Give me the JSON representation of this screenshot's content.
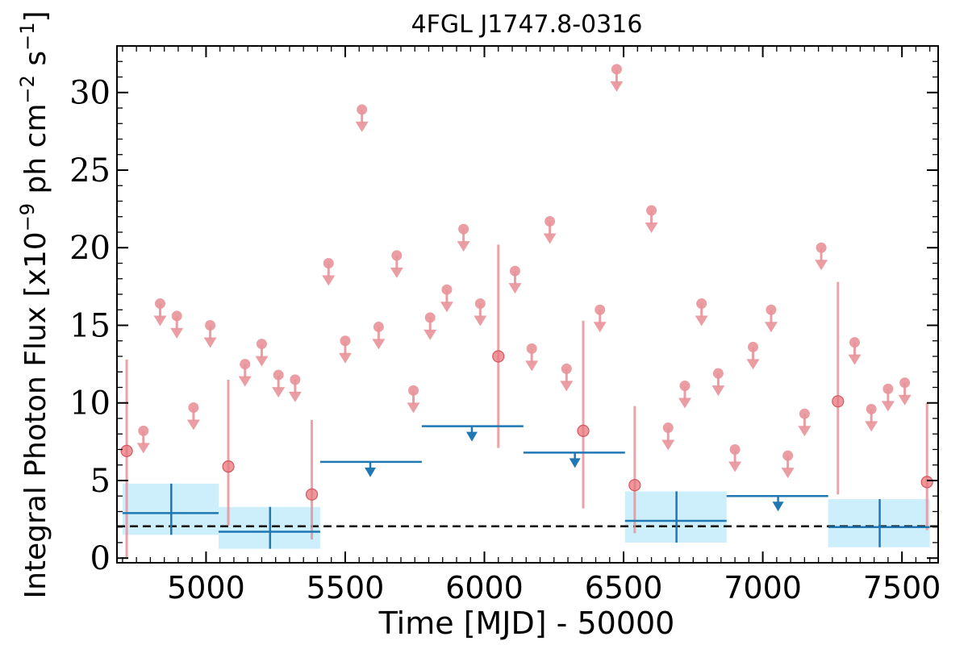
{
  "chart_data": {
    "type": "scatter",
    "title": "4FGL J1747.8-0316",
    "xlabel": "Time [MJD] - 50000",
    "ylabel_main": "Integral Photon Flux [x10",
    "ylabel_exp": "−9",
    "ylabel_mid": " ph cm",
    "ylabel_exp2": "−2",
    "ylabel_mid2": " s",
    "ylabel_exp3": "−1",
    "ylabel_end": "]",
    "xlim": [
      4680,
      7630
    ],
    "ylim": [
      -0.3,
      33
    ],
    "x_ticks": [
      5000,
      5500,
      6000,
      6500,
      7000,
      7500
    ],
    "x_tick_labels": [
      "5000",
      "5500",
      "6000",
      "6500",
      "7000",
      "7500"
    ],
    "y_ticks": [
      0,
      5,
      10,
      15,
      20,
      25,
      30
    ],
    "y_tick_labels": [
      "0",
      "5",
      "10",
      "15",
      "20",
      "25",
      "30"
    ],
    "reference_level": 2.05,
    "colors": {
      "short_bins": "#e8939a",
      "long_bins": "#1f77b4",
      "long_bins_band": "#cdeefb",
      "reference": "#000000"
    },
    "short_bins_detections": [
      {
        "x": 4715,
        "y": 6.9,
        "ylo": 0.0,
        "yhi": 12.8
      },
      {
        "x": 5080,
        "y": 5.9,
        "ylo": 2.1,
        "yhi": 11.5
      },
      {
        "x": 5380,
        "y": 4.1,
        "ylo": 1.2,
        "yhi": 8.9
      },
      {
        "x": 6050,
        "y": 13.0,
        "ylo": 7.1,
        "yhi": 20.2
      },
      {
        "x": 6355,
        "y": 8.2,
        "ylo": 3.2,
        "yhi": 15.3
      },
      {
        "x": 6540,
        "y": 4.7,
        "ylo": 1.6,
        "yhi": 9.8
      },
      {
        "x": 7270,
        "y": 10.1,
        "ylo": 4.1,
        "yhi": 17.8
      },
      {
        "x": 7590,
        "y": 4.9,
        "ylo": 1.8,
        "yhi": 10.0
      }
    ],
    "short_bins_upper_limits": [
      {
        "x": 4775,
        "y": 8.2
      },
      {
        "x": 4835,
        "y": 16.4
      },
      {
        "x": 4895,
        "y": 15.6
      },
      {
        "x": 4955,
        "y": 9.7
      },
      {
        "x": 5015,
        "y": 15.0
      },
      {
        "x": 5140,
        "y": 12.5
      },
      {
        "x": 5200,
        "y": 13.8
      },
      {
        "x": 5260,
        "y": 11.8
      },
      {
        "x": 5320,
        "y": 11.5
      },
      {
        "x": 5440,
        "y": 19.0
      },
      {
        "x": 5500,
        "y": 14.0
      },
      {
        "x": 5560,
        "y": 28.9
      },
      {
        "x": 5620,
        "y": 14.9
      },
      {
        "x": 5685,
        "y": 19.5
      },
      {
        "x": 5745,
        "y": 10.8
      },
      {
        "x": 5805,
        "y": 15.5
      },
      {
        "x": 5865,
        "y": 17.3
      },
      {
        "x": 5925,
        "y": 21.2
      },
      {
        "x": 5985,
        "y": 16.4
      },
      {
        "x": 6110,
        "y": 18.5
      },
      {
        "x": 6170,
        "y": 13.5
      },
      {
        "x": 6235,
        "y": 21.7
      },
      {
        "x": 6295,
        "y": 12.2
      },
      {
        "x": 6415,
        "y": 16.0
      },
      {
        "x": 6475,
        "y": 31.5
      },
      {
        "x": 6600,
        "y": 22.4
      },
      {
        "x": 6660,
        "y": 8.4
      },
      {
        "x": 6720,
        "y": 11.1
      },
      {
        "x": 6780,
        "y": 16.4
      },
      {
        "x": 6840,
        "y": 11.9
      },
      {
        "x": 6900,
        "y": 7.0
      },
      {
        "x": 6965,
        "y": 13.6
      },
      {
        "x": 7030,
        "y": 16.0
      },
      {
        "x": 7090,
        "y": 6.6
      },
      {
        "x": 7150,
        "y": 9.3
      },
      {
        "x": 7210,
        "y": 20.0
      },
      {
        "x": 7330,
        "y": 13.9
      },
      {
        "x": 7390,
        "y": 9.6
      },
      {
        "x": 7450,
        "y": 10.9
      },
      {
        "x": 7510,
        "y": 11.3
      }
    ],
    "long_bins_detections": [
      {
        "x0": 4700,
        "x1": 5045,
        "xc": 4875,
        "y": 2.9,
        "ylo": 1.5,
        "yhi": 4.8
      },
      {
        "x0": 5045,
        "x1": 5410,
        "xc": 5230,
        "y": 1.7,
        "ylo": 0.6,
        "yhi": 3.3
      },
      {
        "x0": 6505,
        "x1": 6870,
        "xc": 6690,
        "y": 2.4,
        "ylo": 1.0,
        "yhi": 4.3
      },
      {
        "x0": 7235,
        "x1": 7600,
        "xc": 7420,
        "y": 2.0,
        "ylo": 0.7,
        "yhi": 3.8
      }
    ],
    "long_bins_upper_limits": [
      {
        "x0": 5410,
        "x1": 5775,
        "xc": 5590,
        "y": 6.2
      },
      {
        "x0": 5775,
        "x1": 6140,
        "xc": 5955,
        "y": 8.5
      },
      {
        "x0": 6140,
        "x1": 6505,
        "xc": 6325,
        "y": 6.8
      },
      {
        "x0": 6870,
        "x1": 7235,
        "xc": 7055,
        "y": 4.0
      }
    ]
  }
}
